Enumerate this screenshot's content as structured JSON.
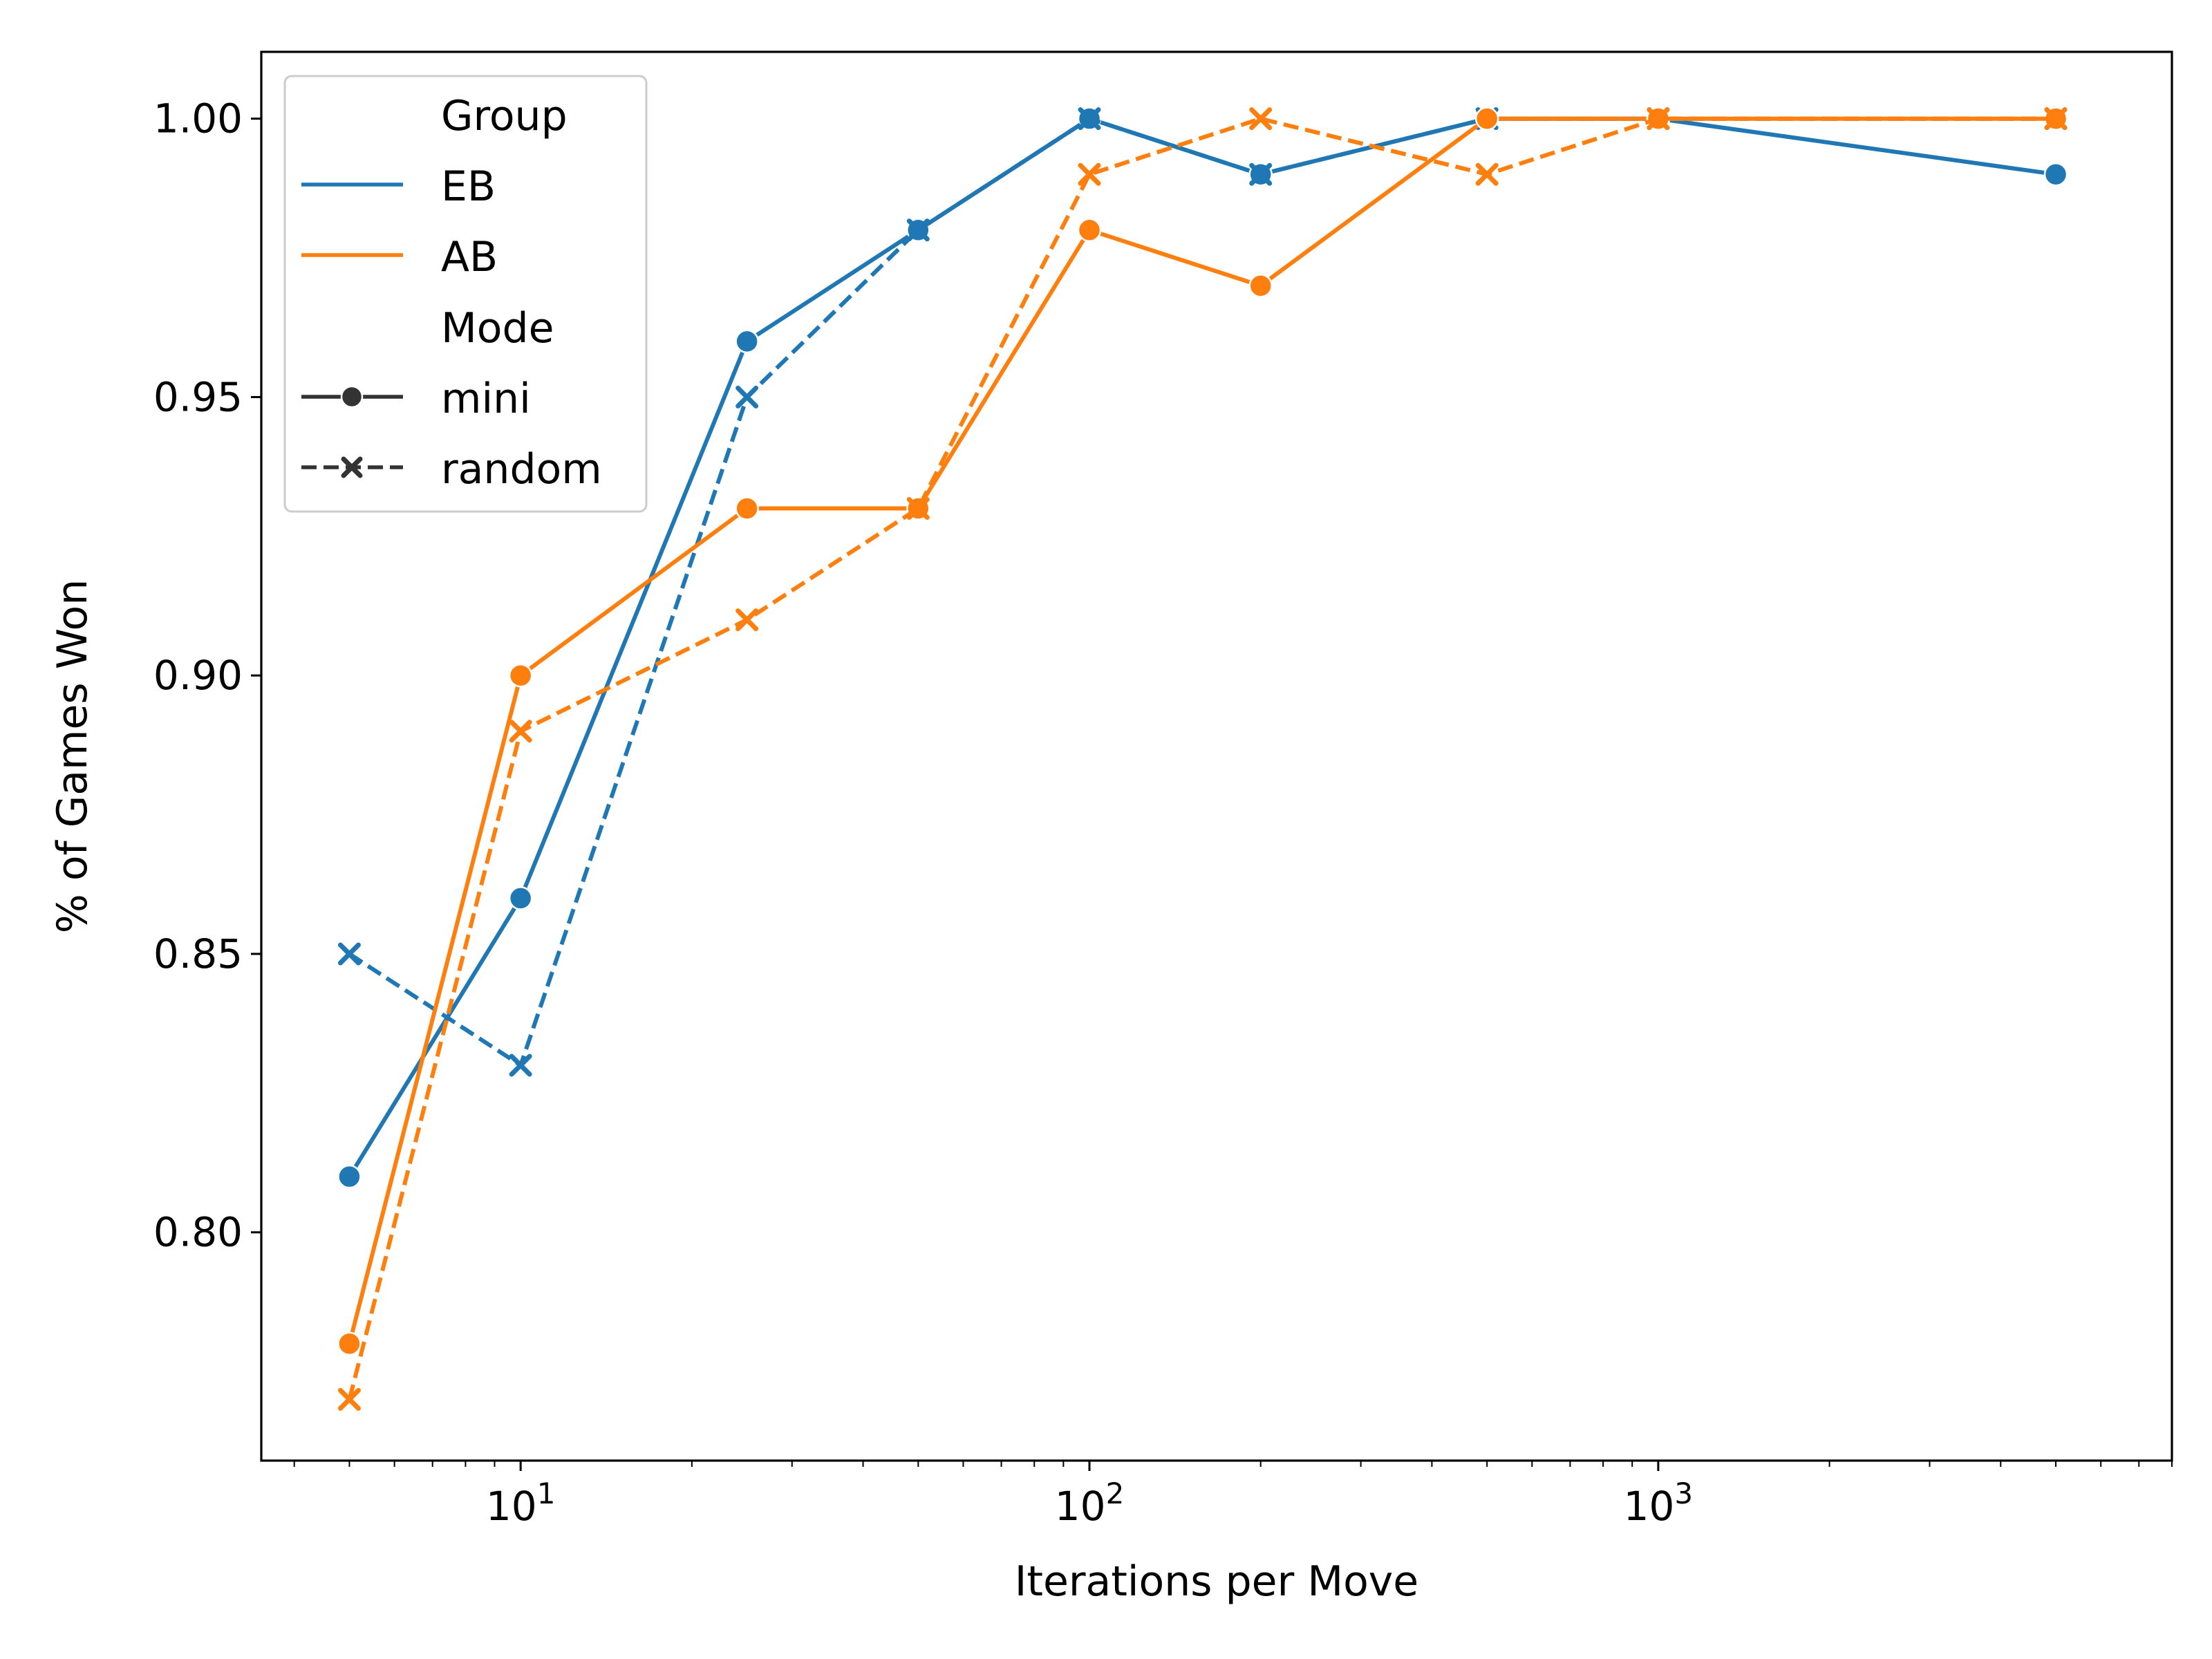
{
  "chart_data": {
    "type": "line",
    "xlabel": "Iterations per Move",
    "ylabel": "% of Games Won",
    "xscale": "log",
    "xlim": [
      3.5,
      8000
    ],
    "ylim": [
      0.759,
      1.012
    ],
    "x_major_ticks": [
      {
        "value": 10,
        "base": "10",
        "exp": "1"
      },
      {
        "value": 100,
        "base": "10",
        "exp": "2"
      },
      {
        "value": 1000,
        "base": "10",
        "exp": "3"
      }
    ],
    "y_ticks": [
      {
        "value": 0.8,
        "label": "0.80"
      },
      {
        "value": 0.85,
        "label": "0.85"
      },
      {
        "value": 0.9,
        "label": "0.90"
      },
      {
        "value": 0.95,
        "label": "0.95"
      },
      {
        "value": 1.0,
        "label": "1.00"
      }
    ],
    "grid": false,
    "legend": {
      "placement": "top-left",
      "group_title": "Group",
      "mode_title": "Mode",
      "groups": [
        {
          "name": "EB",
          "color": "#1f77b4"
        },
        {
          "name": "AB",
          "color": "#ff7f0e"
        }
      ],
      "modes": [
        {
          "name": "mini",
          "marker": "circle",
          "dash": "solid"
        },
        {
          "name": "random",
          "marker": "x",
          "dash": "dashed"
        }
      ]
    },
    "series": [
      {
        "group": "EB",
        "mode": "mini",
        "color": "#1f77b4",
        "marker": "circle",
        "dash": "solid",
        "x": [
          5,
          10,
          25,
          50,
          100,
          200,
          500,
          1000,
          5000
        ],
        "y": [
          0.81,
          0.86,
          0.96,
          0.98,
          1.0,
          0.99,
          1.0,
          1.0,
          0.99
        ]
      },
      {
        "group": "EB",
        "mode": "random",
        "color": "#1f77b4",
        "marker": "x",
        "dash": "dashed",
        "x": [
          5,
          10,
          25,
          50,
          100,
          200,
          500,
          1000,
          5000
        ],
        "y": [
          0.85,
          0.83,
          0.95,
          0.98,
          1.0,
          0.99,
          1.0,
          1.0,
          1.0
        ]
      },
      {
        "group": "AB",
        "mode": "mini",
        "color": "#ff7f0e",
        "marker": "circle",
        "dash": "solid",
        "x": [
          5,
          10,
          25,
          50,
          100,
          200,
          500,
          1000,
          5000
        ],
        "y": [
          0.78,
          0.9,
          0.93,
          0.93,
          0.98,
          0.97,
          1.0,
          1.0,
          1.0
        ]
      },
      {
        "group": "AB",
        "mode": "random",
        "color": "#ff7f0e",
        "marker": "x",
        "dash": "dashed",
        "x": [
          5,
          10,
          25,
          50,
          100,
          200,
          500,
          1000,
          5000
        ],
        "y": [
          0.77,
          0.89,
          0.91,
          0.93,
          0.99,
          1.0,
          0.99,
          1.0,
          1.0
        ]
      }
    ]
  }
}
